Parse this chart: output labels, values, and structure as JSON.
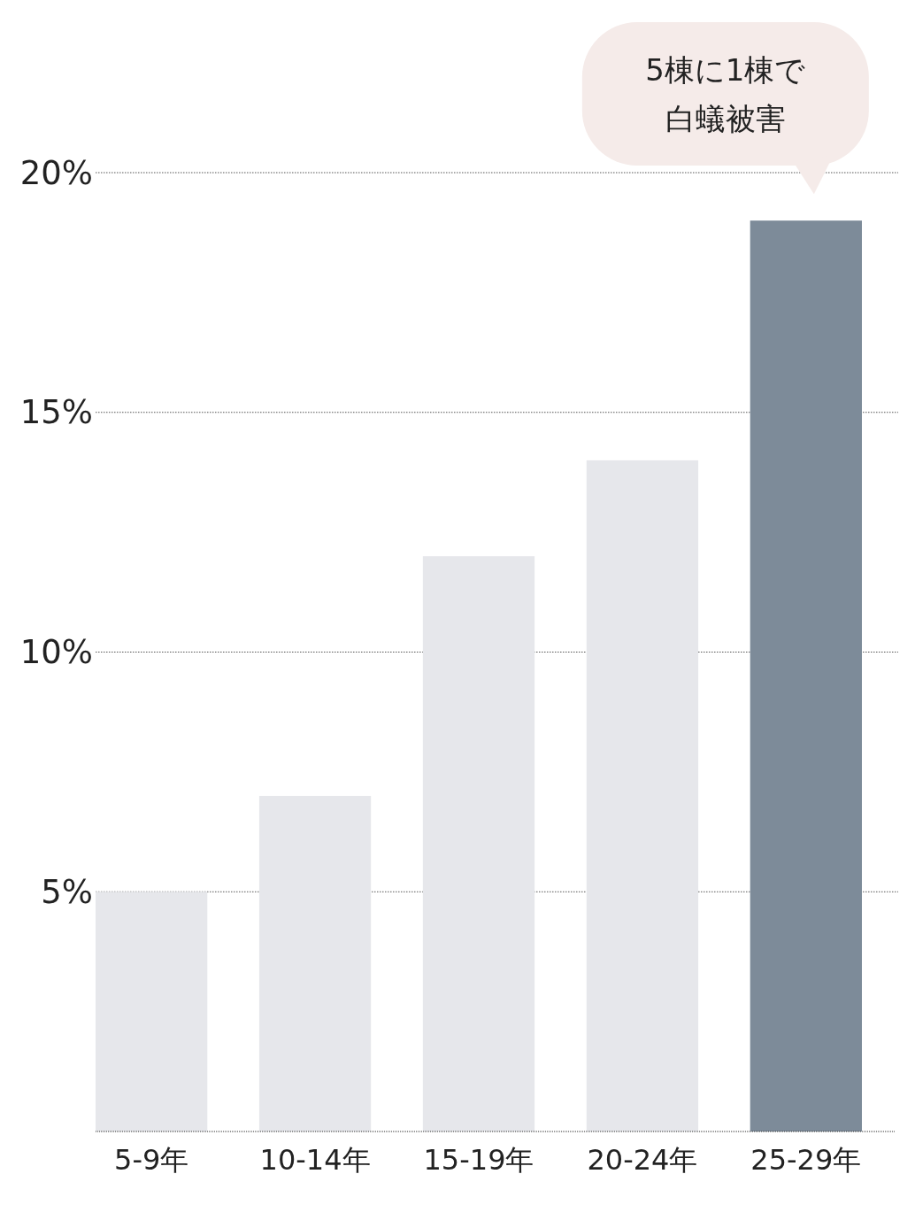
{
  "chart_data": {
    "type": "bar",
    "categories": [
      "5-9年",
      "10-14年",
      "15-19年",
      "20-24年",
      "25-29年"
    ],
    "values": [
      5,
      7,
      12,
      14,
      19
    ],
    "colors": [
      "#e6e7eb",
      "#e6e7eb",
      "#e6e7eb",
      "#e6e7eb",
      "#7d8b99"
    ],
    "ylim": [
      0,
      20
    ],
    "yticks": [
      {
        "value": 5,
        "label": "5%"
      },
      {
        "value": 10,
        "label": "10%"
      },
      {
        "value": 15,
        "label": "15%"
      },
      {
        "value": 20,
        "label": "20%"
      }
    ],
    "grid": "y",
    "annotations": [
      {
        "text": "5棟に1棟で白蟻被害",
        "x": "25-29年",
        "y": 19
      }
    ]
  }
}
